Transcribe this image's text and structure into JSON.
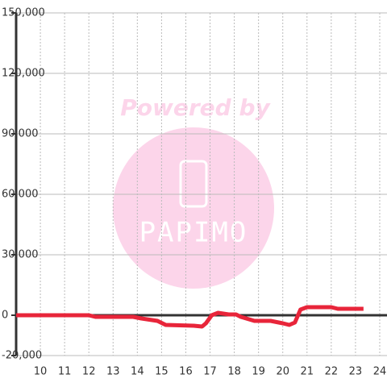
{
  "chart_data": {
    "type": "line",
    "x": [
      9,
      12,
      12.27,
      13.83,
      14.17,
      14.83,
      15.17,
      16.33,
      16.67,
      16.83,
      17.07,
      17.33,
      17.77,
      18.07,
      18.27,
      18.83,
      19.5,
      20,
      20.27,
      20.5,
      20.73,
      21,
      22,
      22.27,
      23.33
    ],
    "series": [
      {
        "color": "#e8253a",
        "values": [
          0,
          0,
          -800,
          -800,
          -1600,
          -2800,
          -4800,
          -5200,
          -5600,
          -4000,
          0,
          1200,
          400,
          400,
          -800,
          -2800,
          -2800,
          -4000,
          -4800,
          -3600,
          2800,
          4000,
          4000,
          3200,
          3200
        ]
      }
    ],
    "xlim": [
      9,
      24.3
    ],
    "xticks": [
      10,
      11,
      12,
      13,
      14,
      15,
      16,
      17,
      18,
      19,
      20,
      21,
      22,
      23,
      24
    ],
    "ylim": [
      -20000,
      150000
    ],
    "yticks": [
      {
        "value": -20000,
        "label": "-20,000"
      },
      0,
      {
        "value": 30000,
        "label": "30,000"
      },
      {
        "value": 60000,
        "label": "60,000"
      },
      {
        "value": 90000,
        "label": "90,000"
      },
      {
        "value": 120000,
        "label": "120,000"
      },
      {
        "value": 150000,
        "label": "150,000"
      }
    ],
    "grid": true
  },
  "watermark": [
    "Powered by",
    "PAPIMO"
  ]
}
